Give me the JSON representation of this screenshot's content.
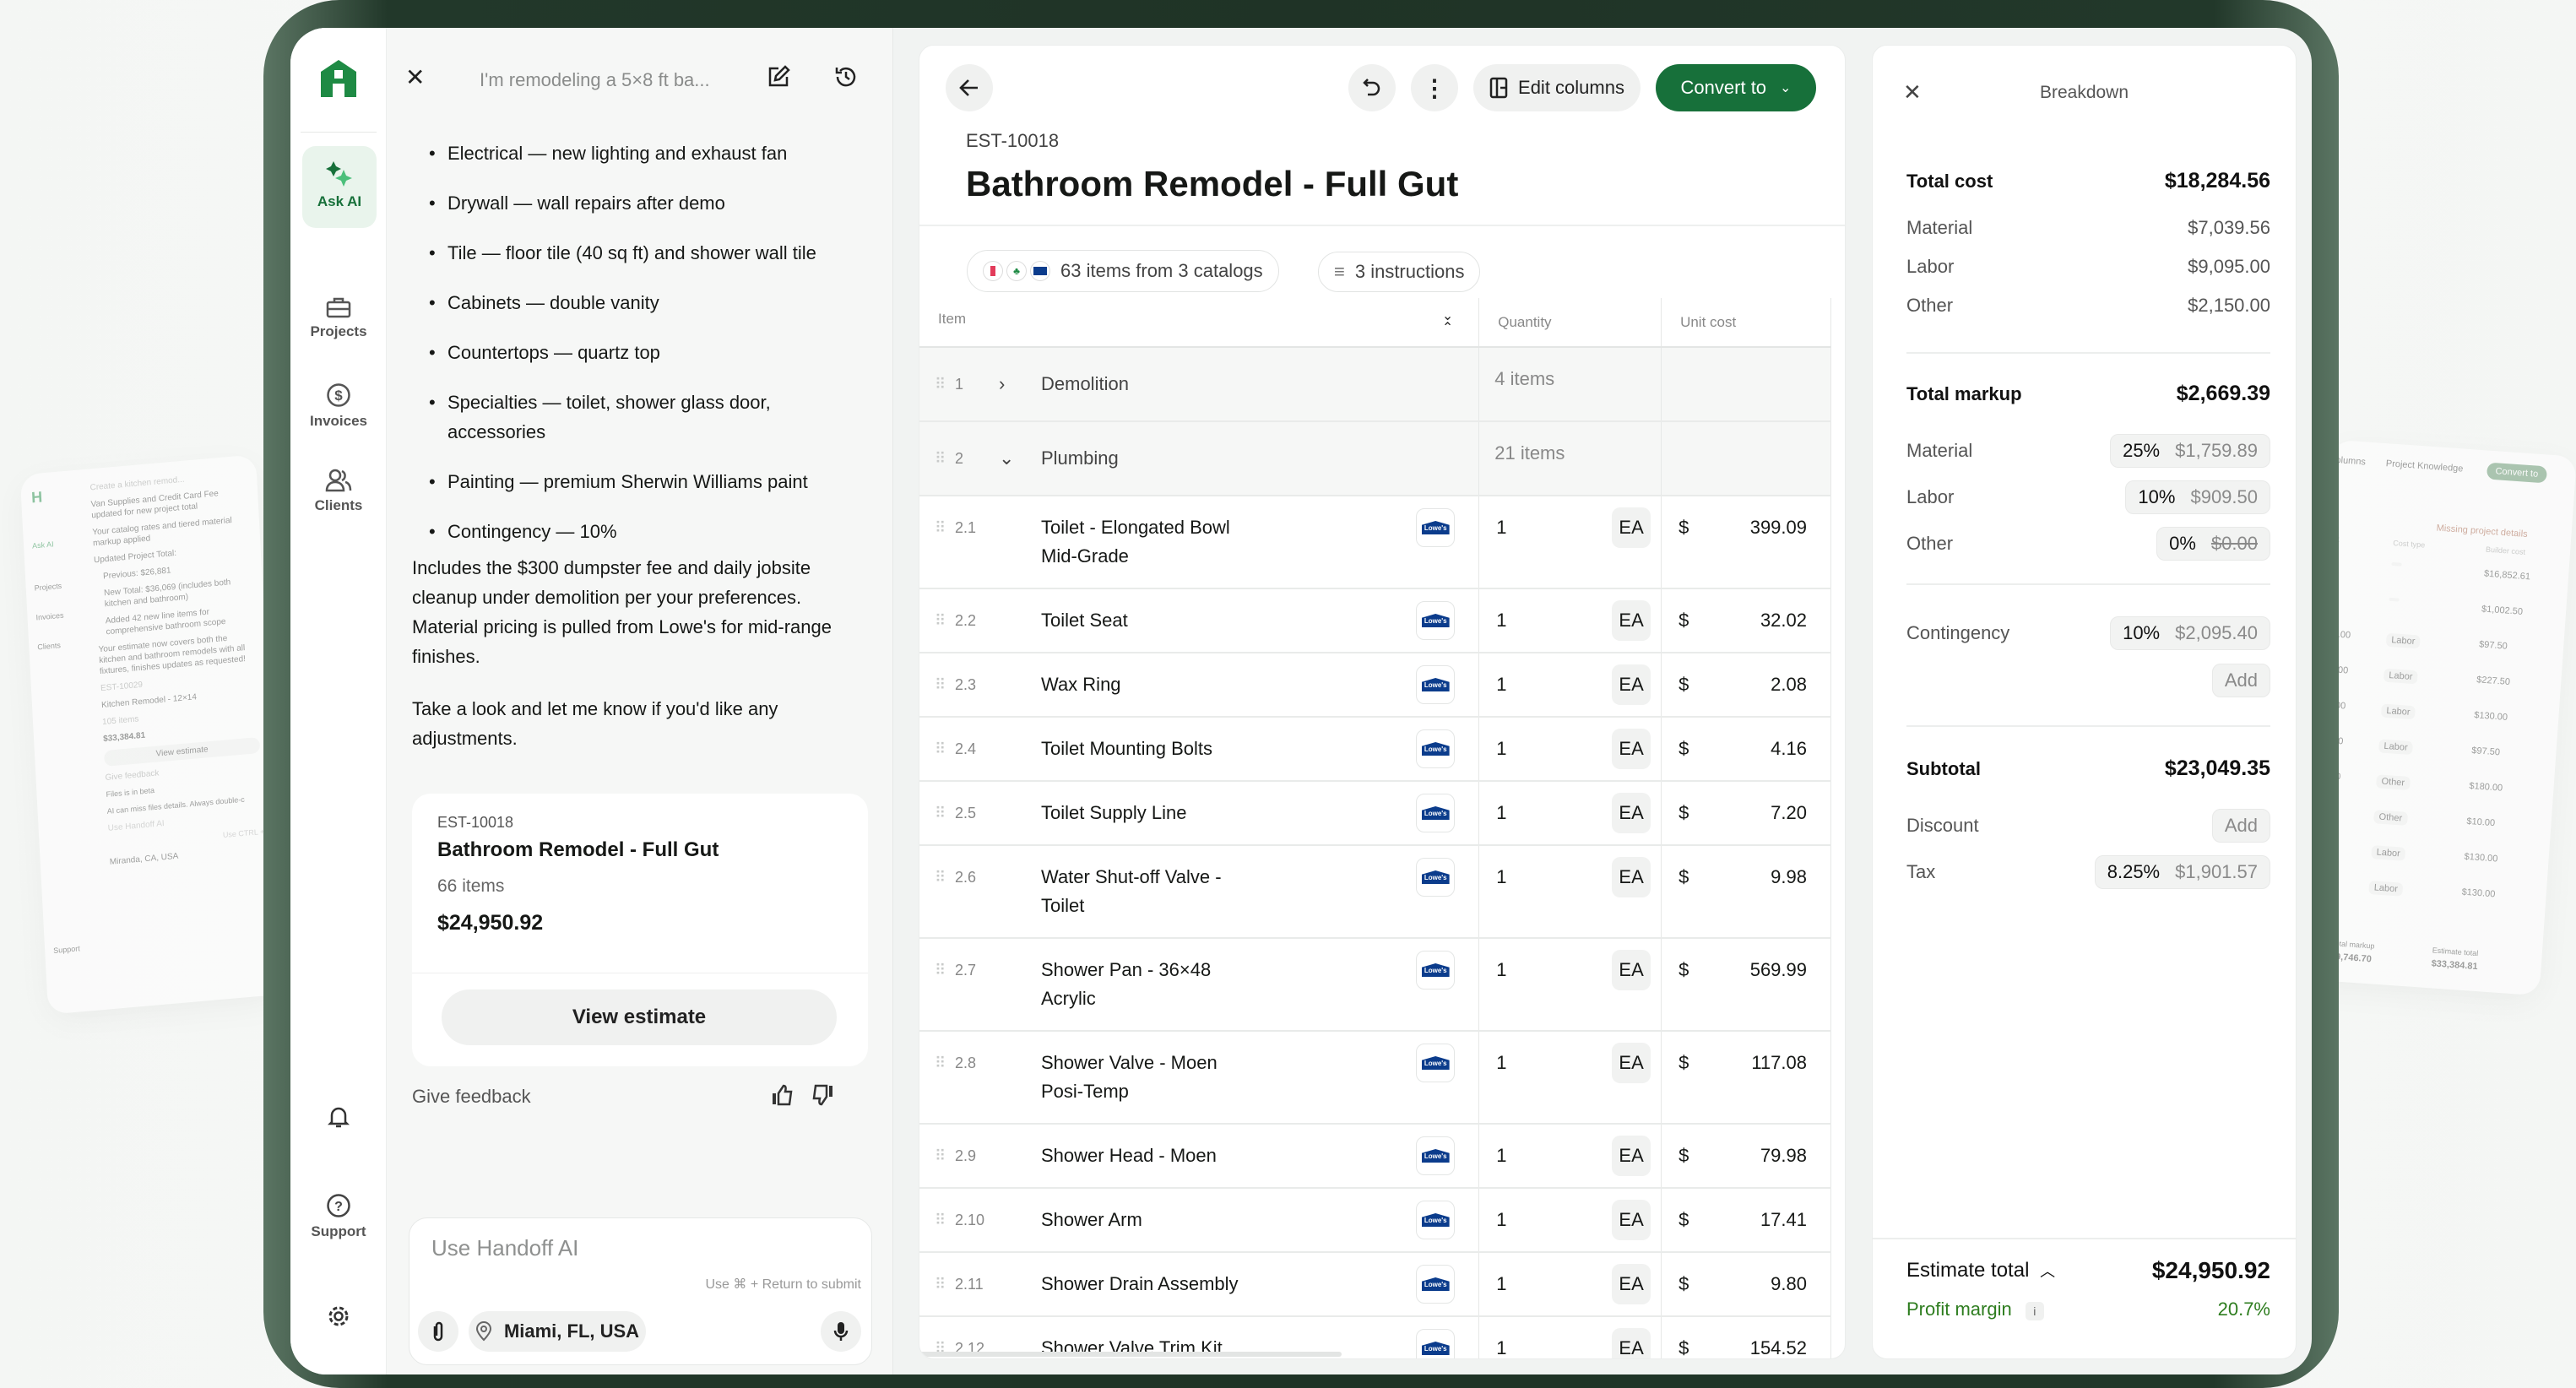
{
  "background_mockups": {
    "left": {
      "chat_title": "Create a kitchen remod...",
      "lines": [
        "Van Supplies and Credit Card Fee updated for new project total",
        "Your catalog rates and tiered material markup applied",
        "Updated Project Total:",
        "Previous: $26,881",
        "New Total: $36,069 (includes both kitchen and bathroom)",
        "Added 42 new line items for comprehensive bathroom scope",
        "Your estimate now covers both the kitchen and bathroom remodels with all fixtures, finishes updates as requested!"
      ],
      "card": {
        "id": "EST-10029",
        "title": "Kitchen Remodel - 12×14",
        "items": "105 items",
        "total": "$33,384.81",
        "button": "View estimate"
      },
      "feedback": "Give feedback",
      "beta": "Files is in beta",
      "beta_note": "AI can miss files details. Always double-c",
      "input": "Use Handoff AI",
      "hint": "Use CTRL +",
      "location": "Miranda, CA, USA",
      "nav": [
        "Ask AI",
        "Projects",
        "Invoices",
        "Clients",
        "Support"
      ]
    },
    "right": {
      "buttons": [
        "columns",
        "Project Knowledge",
        "Convert to"
      ],
      "warning": "Missing project details",
      "headers": [
        "cost",
        "Cost type",
        "Builder cost"
      ],
      "rows": [
        [
          "",
          "",
          "$16,852.61"
        ],
        [
          "",
          "",
          "$1,002.50"
        ],
        [
          "65.00",
          "Labor",
          "$97.50"
        ],
        [
          "65.00",
          "Labor",
          "$227.50"
        ],
        [
          "65.00",
          "Labor",
          "$130.00"
        ],
        [
          "65.00",
          "Labor",
          "$97.50"
        ],
        [
          "80.00",
          "Other",
          "$180.00"
        ],
        [
          "0.00",
          "Other",
          "$10.00"
        ],
        [
          ".00",
          "Labor",
          "$130.00"
        ],
        [
          "00",
          "Labor",
          "$130.00"
        ]
      ],
      "footer": {
        "markup_label": "Total markup",
        "markup": "$9,746.70",
        "total_label": "Estimate total",
        "total": "$33,384.81"
      }
    }
  },
  "colors": {
    "brand": "#1e8a44",
    "convert_button": "#17703a",
    "profit": "#2e7d1f",
    "lowes": "#0b3c8c"
  },
  "sidebar": {
    "logo": "H",
    "items": [
      {
        "label": "Ask AI",
        "icon": "sparkle-icon",
        "active": true
      },
      {
        "label": "Projects",
        "icon": "briefcase-icon"
      },
      {
        "label": "Invoices",
        "icon": "dollar-circle-icon"
      },
      {
        "label": "Clients",
        "icon": "users-icon"
      }
    ],
    "support": "Support"
  },
  "chat": {
    "title": "I'm remodeling a 5×8 ft ba...",
    "bullets": [
      "Electrical — new lighting and exhaust fan",
      "Drywall — wall repairs after demo",
      "Tile — floor tile (40 sq ft) and shower wall tile",
      "Cabinets — double vanity",
      "Countertops — quartz top",
      "Specialties — toilet, shower glass door, accessories",
      "Painting — premium Sherwin Williams paint",
      "Contingency — 10%"
    ],
    "paragraph1": "Includes the $300 dumpster fee and daily jobsite cleanup under demolition per your preferences. Material pricing is pulled from Lowe's for mid-range finishes.",
    "paragraph2": "Take a look and let me know if you'd like any adjustments.",
    "card": {
      "id": "EST-10018",
      "title": "Bathroom Remodel - Full Gut",
      "items": "66 items",
      "total": "$24,950.92",
      "button": "View estimate"
    },
    "feedback": "Give feedback",
    "input": {
      "placeholder": "Use Handoff AI",
      "hint": "Use ⌘ + Return to submit",
      "location": "Miami, FL, USA"
    }
  },
  "estimate": {
    "id": "EST-10018",
    "title": "Bathroom Remodel - Full Gut",
    "edit_columns": "Edit columns",
    "convert": "Convert to",
    "catalogs_chip": "63 items from 3 catalogs",
    "instructions_chip": "3 instructions",
    "columns": [
      "Item",
      "Quantity",
      "Unit cost"
    ],
    "groups": [
      {
        "num": "1",
        "name": "Demolition",
        "count": "4 items",
        "expanded": false
      },
      {
        "num": "2",
        "name": "Plumbing",
        "count": "21 items",
        "expanded": true
      }
    ],
    "catalog_logo": "Lowe's",
    "items": [
      {
        "num": "2.1",
        "name": "Toilet - Elongated Bowl\nMid-Grade",
        "qty": "1",
        "unit": "EA",
        "currency": "$",
        "cost": "399.09"
      },
      {
        "num": "2.2",
        "name": "Toilet Seat",
        "qty": "1",
        "unit": "EA",
        "currency": "$",
        "cost": "32.02"
      },
      {
        "num": "2.3",
        "name": "Wax Ring",
        "qty": "1",
        "unit": "EA",
        "currency": "$",
        "cost": "2.08"
      },
      {
        "num": "2.4",
        "name": "Toilet Mounting Bolts",
        "qty": "1",
        "unit": "EA",
        "currency": "$",
        "cost": "4.16"
      },
      {
        "num": "2.5",
        "name": "Toilet Supply Line",
        "qty": "1",
        "unit": "EA",
        "currency": "$",
        "cost": "7.20"
      },
      {
        "num": "2.6",
        "name": "Water Shut-off Valve -\nToilet",
        "qty": "1",
        "unit": "EA",
        "currency": "$",
        "cost": "9.98"
      },
      {
        "num": "2.7",
        "name": "Shower Pan - 36×48\nAcrylic",
        "qty": "1",
        "unit": "EA",
        "currency": "$",
        "cost": "569.99"
      },
      {
        "num": "2.8",
        "name": "Shower Valve - Moen\nPosi-Temp",
        "qty": "1",
        "unit": "EA",
        "currency": "$",
        "cost": "117.08"
      },
      {
        "num": "2.9",
        "name": "Shower Head - Moen",
        "qty": "1",
        "unit": "EA",
        "currency": "$",
        "cost": "79.98"
      },
      {
        "num": "2.10",
        "name": "Shower Arm",
        "qty": "1",
        "unit": "EA",
        "currency": "$",
        "cost": "17.41"
      },
      {
        "num": "2.11",
        "name": "Shower Drain Assembly",
        "qty": "1",
        "unit": "EA",
        "currency": "$",
        "cost": "9.80"
      },
      {
        "num": "2.12",
        "name": "Shower Valve Trim Kit",
        "qty": "1",
        "unit": "EA",
        "currency": "$",
        "cost": "154.52"
      }
    ]
  },
  "breakdown": {
    "title": "Breakdown",
    "total_cost": {
      "label": "Total cost",
      "value": "$18,284.56"
    },
    "cost_rows": [
      {
        "label": "Material",
        "value": "$7,039.56"
      },
      {
        "label": "Labor",
        "value": "$9,095.00"
      },
      {
        "label": "Other",
        "value": "$2,150.00"
      }
    ],
    "total_markup": {
      "label": "Total markup",
      "value": "$2,669.39"
    },
    "markup_rows": [
      {
        "label": "Material",
        "pct": "25%",
        "value": "$1,759.89"
      },
      {
        "label": "Labor",
        "pct": "10%",
        "value": "$909.50"
      },
      {
        "label": "Other",
        "pct": "0%",
        "value": "$0.00",
        "struck": true
      }
    ],
    "contingency": {
      "label": "Contingency",
      "pct": "10%",
      "value": "$2,095.40",
      "add": "Add"
    },
    "subtotal": {
      "label": "Subtotal",
      "value": "$23,049.35"
    },
    "discount": {
      "label": "Discount",
      "add": "Add"
    },
    "tax": {
      "label": "Tax",
      "pct": "8.25%",
      "value": "$1,901.57"
    },
    "estimate_total": {
      "label": "Estimate total",
      "value": "$24,950.92"
    },
    "profit_margin": {
      "label": "Profit margin",
      "value": "20.7%"
    }
  }
}
